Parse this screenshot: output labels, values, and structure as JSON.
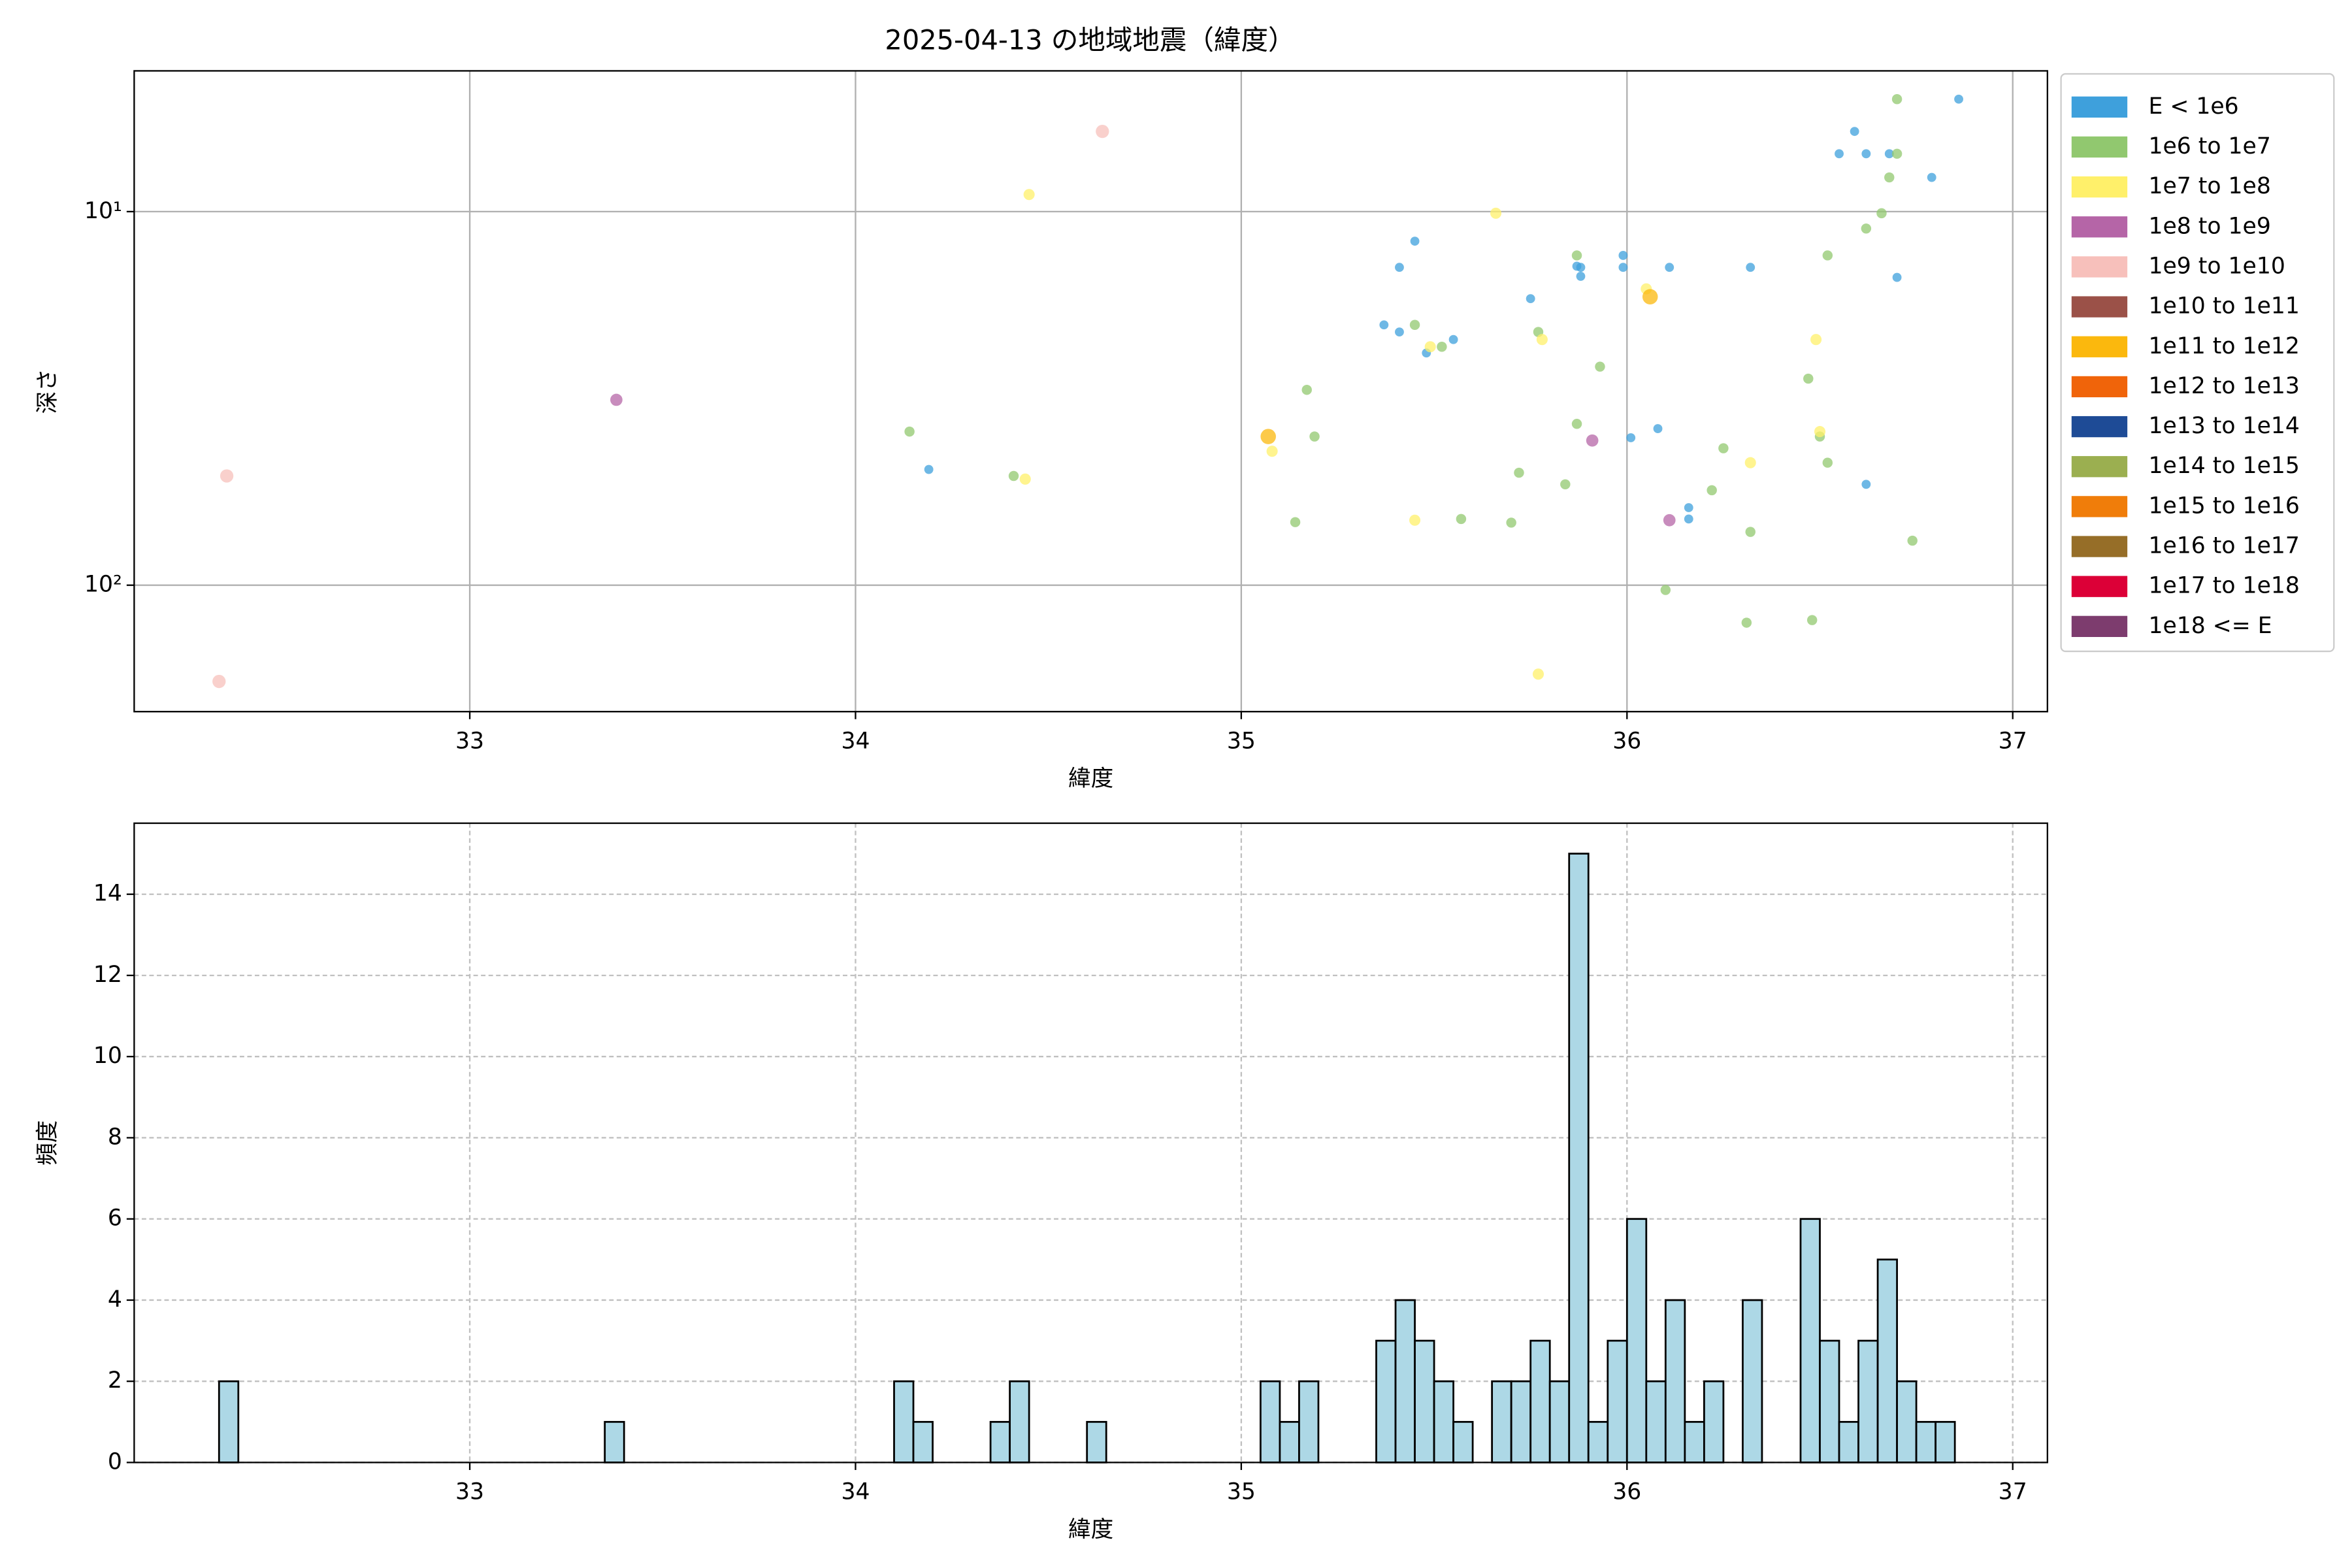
{
  "chart_data": [
    {
      "type": "scatter",
      "title": "2025-04-13 の地域地震（緯度）",
      "xlabel": "緯度",
      "ylabel": "深さ",
      "xlim": [
        32.13,
        37.09
      ],
      "xticks": [
        33,
        34,
        35,
        36,
        37
      ],
      "ylim": [
        4.2,
        218
      ],
      "y_inverted": true,
      "log_y": true,
      "yticks": [
        {
          "value": 10,
          "label": "10¹"
        },
        {
          "value": 100,
          "label": "10²"
        }
      ],
      "grid": true,
      "legend": "outside-right",
      "series": [
        {
          "name": "E < 1e6",
          "color": "#3ea0dc",
          "x": [
            36.86,
            36.59,
            36.55,
            36.62,
            36.68,
            36.79,
            35.45,
            35.41,
            35.87,
            35.88,
            35.88,
            35.99,
            35.99,
            36.11,
            36.32,
            35.75,
            35.37,
            35.41,
            35.55,
            35.48,
            36.08,
            36.01,
            34.19,
            36.16,
            36.16,
            36.62,
            36.7
          ],
          "values": [
            5.0,
            6.1,
            7.0,
            7.0,
            7.0,
            8.1,
            12.0,
            14.1,
            14.0,
            14.1,
            14.9,
            13.1,
            14.1,
            14.1,
            14.1,
            17.1,
            20.1,
            21.0,
            22.0,
            23.9,
            38.1,
            40.3,
            49,
            62,
            66.5,
            53.7,
            15.0
          ]
        },
        {
          "name": "1e6 to 1e7",
          "color": "#91c86f",
          "x": [
            36.7,
            36.7,
            36.68,
            36.66,
            36.62,
            36.52,
            35.87,
            35.45,
            35.52,
            35.77,
            35.93,
            36.47,
            35.17,
            34.14,
            35.87,
            35.19,
            36.5,
            36.25,
            36.52,
            35.72,
            34.41,
            35.84,
            36.22,
            35.14,
            35.57,
            35.7,
            36.32,
            36.74,
            36.1,
            36.31,
            36.48
          ],
          "values": [
            5.0,
            7.0,
            8.1,
            10.1,
            11.1,
            13.1,
            13.1,
            20.1,
            23,
            21,
            26,
            28,
            30,
            38.8,
            37,
            40,
            40,
            43,
            47,
            50,
            51,
            53.7,
            55.7,
            67.8,
            66.5,
            68,
            72,
            76,
            103,
            126,
            124
          ]
        },
        {
          "name": "1e7 to 1e8",
          "color": "#fff06a",
          "x": [
            34.45,
            35.66,
            36.05,
            35.78,
            36.49,
            35.49,
            36.5,
            35.08,
            36.32,
            34.44,
            35.45,
            35.77
          ],
          "values": [
            9.0,
            10.1,
            16.1,
            22,
            22,
            23,
            38.8,
            43.8,
            47,
            52,
            67,
            173
          ]
        },
        {
          "name": "1e8 to 1e9",
          "color": "#b565a7",
          "x": [
            33.38,
            35.91,
            36.11
          ],
          "values": [
            31.9,
            41,
            67
          ]
        },
        {
          "name": "1e9 to 1e10",
          "color": "#f7c0bb",
          "x": [
            34.64,
            32.37,
            32.35
          ],
          "values": [
            6.1,
            51,
            181
          ]
        },
        {
          "name": "1e10 to 1e11",
          "color": "#9b5148",
          "x": [],
          "values": []
        },
        {
          "name": "1e11 to 1e12",
          "color": "#fbb80d",
          "x": [
            36.06,
            35.07
          ],
          "values": [
            16.9,
            40
          ]
        },
        {
          "name": "1e12 to 1e13",
          "color": "#f0640a",
          "x": [],
          "values": []
        },
        {
          "name": "1e13 to 1e14",
          "color": "#1e4b96",
          "x": [],
          "values": []
        },
        {
          "name": "1e14 to 1e15",
          "color": "#9baf50",
          "x": [],
          "values": []
        },
        {
          "name": "1e15 to 1e16",
          "color": "#f07d0a",
          "x": [],
          "values": []
        },
        {
          "name": "1e16 to 1e17",
          "color": "#966e28",
          "x": [],
          "values": []
        },
        {
          "name": "1e17 to 1e18",
          "color": "#dc0037",
          "x": [],
          "values": []
        },
        {
          "name": "1e18 <= E",
          "color": "#7d3c6e",
          "x": [],
          "values": []
        }
      ]
    },
    {
      "type": "histogram",
      "xlabel": "緯度",
      "ylabel": "頻度",
      "xlim": [
        32.13,
        37.09
      ],
      "xticks": [
        33,
        34,
        35,
        36,
        37
      ],
      "ylim": [
        0,
        15.75
      ],
      "yticks": [
        0,
        2,
        4,
        6,
        8,
        10,
        12,
        14
      ],
      "grid": true,
      "color": "#add8e6",
      "edgecolor": "#000000",
      "bins": [
        32.35,
        32.4,
        32.45,
        32.5,
        32.55,
        32.6,
        32.65,
        32.7,
        32.75,
        32.8,
        32.85,
        32.9,
        32.95,
        33,
        33.05,
        33.1,
        33.15,
        33.2,
        33.25,
        33.3,
        33.35,
        33.4,
        33.45,
        33.5,
        33.55,
        33.6,
        33.65,
        33.7,
        33.75,
        33.8,
        33.85,
        33.9,
        33.95,
        34,
        34.05,
        34.1,
        34.15,
        34.2,
        34.25,
        34.3,
        34.35,
        34.4,
        34.45,
        34.5,
        34.55,
        34.6,
        34.65,
        34.7,
        34.75,
        34.8,
        34.85,
        34.9,
        34.95,
        35,
        35.05,
        35.1,
        35.15,
        35.2,
        35.25,
        35.3,
        35.35,
        35.4,
        35.45,
        35.5,
        35.55,
        35.6,
        35.65,
        35.7,
        35.75,
        35.8,
        35.85,
        35.9,
        35.95,
        36,
        36.05,
        36.1,
        36.15,
        36.2,
        36.25,
        36.3,
        36.35,
        36.4,
        36.45,
        36.5,
        36.55,
        36.6,
        36.65,
        36.7,
        36.75,
        36.8,
        36.85
      ],
      "values": [
        2,
        0,
        0,
        0,
        0,
        0,
        0,
        0,
        0,
        0,
        0,
        0,
        0,
        0,
        0,
        0,
        0,
        0,
        0,
        0,
        1,
        0,
        0,
        0,
        0,
        0,
        0,
        0,
        0,
        0,
        0,
        0,
        0,
        0,
        0,
        2,
        1,
        0,
        0,
        0,
        1,
        2,
        0,
        0,
        0,
        1,
        0,
        0,
        0,
        0,
        0,
        0,
        0,
        0,
        2,
        1,
        2,
        0,
        0,
        0,
        3,
        4,
        3,
        2,
        1,
        0,
        2,
        2,
        3,
        2,
        15,
        1,
        3,
        6,
        2,
        4,
        1,
        2,
        0,
        4,
        0,
        0,
        6,
        3,
        1,
        3,
        5,
        2,
        1,
        1
      ]
    }
  ]
}
